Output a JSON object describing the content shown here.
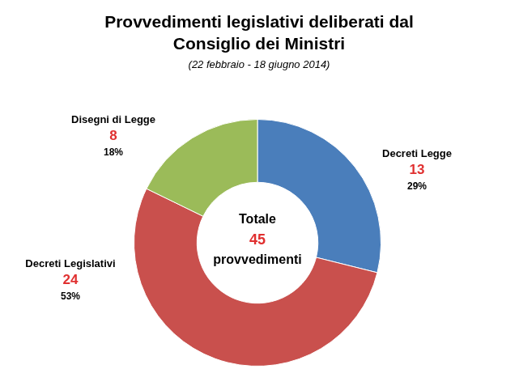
{
  "chart_data": {
    "type": "doughnut",
    "title": [
      "Provvedimenti legislativi deliberati dal",
      "Consiglio dei Ministri"
    ],
    "subtitle": "(22 febbraio - 18 giugno 2014)",
    "categories": [
      "Decreti Legge",
      "Decreti Legislativi",
      "Disegni di Legge"
    ],
    "values": [
      13,
      24,
      8
    ],
    "percentages": [
      {
        "value": 29,
        "label": "29%"
      },
      {
        "value": 53,
        "label": "53%"
      },
      {
        "value": 18,
        "label": "18%"
      }
    ],
    "colors": [
      "#4a7ebb",
      "#c9504d",
      "#9bbb59"
    ],
    "center_text": {
      "label": "Totale",
      "total": 45,
      "unit": "provvedimenti"
    },
    "data_labels": true,
    "legend": false
  }
}
